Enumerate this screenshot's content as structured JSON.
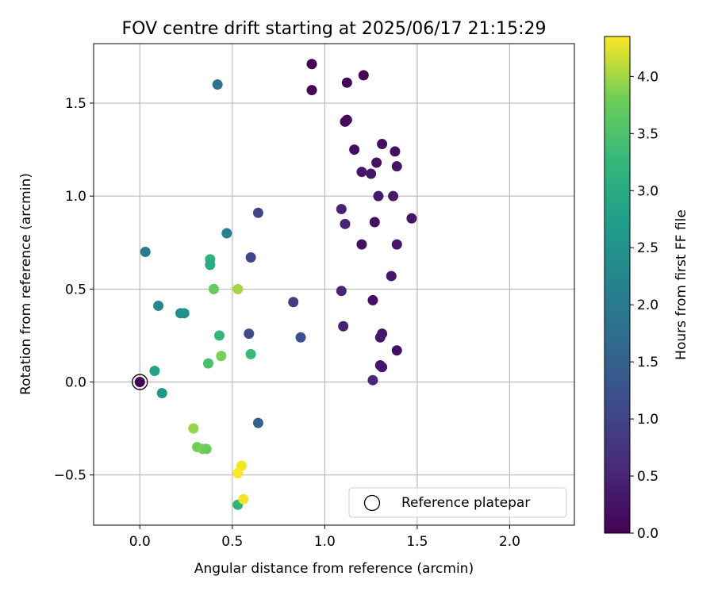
{
  "chart_data": {
    "type": "scatter",
    "title": "FOV centre drift starting at 2025/06/17 21:15:29",
    "xlabel": "Angular distance from reference (arcmin)",
    "ylabel": "Rotation from reference (arcmin)",
    "xlim": [
      -0.25,
      2.35
    ],
    "ylim": [
      -0.77,
      1.82
    ],
    "xticks": [
      0.0,
      0.5,
      1.0,
      1.5,
      2.0
    ],
    "xtick_labels": [
      "0.0",
      "0.5",
      "1.0",
      "1.5",
      "2.0"
    ],
    "yticks": [
      -0.5,
      0.0,
      0.5,
      1.0,
      1.5
    ],
    "ytick_labels": [
      "−0.5",
      "0.0",
      "0.5",
      "1.0",
      "1.5"
    ],
    "grid": true,
    "colormap": "viridis",
    "colorbar": {
      "label": "Hours from first FF file",
      "range": [
        0.0,
        4.35
      ],
      "ticks": [
        0.0,
        0.5,
        1.0,
        1.5,
        2.0,
        2.5,
        3.0,
        3.5,
        4.0
      ],
      "tick_labels": [
        "0.0",
        "0.5",
        "1.0",
        "1.5",
        "2.0",
        "2.5",
        "3.0",
        "3.5",
        "4.0"
      ]
    },
    "legend": {
      "location": "lower right",
      "entries": [
        "Reference platepar"
      ]
    },
    "reference_point": {
      "x": 0.0,
      "y": 0.0,
      "hours": 0.0
    },
    "points": [
      {
        "x": 0.93,
        "y": 1.71,
        "hours": 0.0
      },
      {
        "x": 0.93,
        "y": 1.57,
        "hours": 0.02
      },
      {
        "x": 1.21,
        "y": 1.65,
        "hours": 0.05
      },
      {
        "x": 1.12,
        "y": 1.61,
        "hours": 0.08
      },
      {
        "x": 1.11,
        "y": 1.4,
        "hours": 0.1
      },
      {
        "x": 1.12,
        "y": 1.41,
        "hours": 0.12
      },
      {
        "x": 1.16,
        "y": 1.25,
        "hours": 0.15
      },
      {
        "x": 1.31,
        "y": 1.28,
        "hours": 0.18
      },
      {
        "x": 1.38,
        "y": 1.24,
        "hours": 0.2
      },
      {
        "x": 1.28,
        "y": 1.18,
        "hours": 0.22
      },
      {
        "x": 1.39,
        "y": 1.16,
        "hours": 0.25
      },
      {
        "x": 1.2,
        "y": 1.13,
        "hours": 0.28
      },
      {
        "x": 1.25,
        "y": 1.12,
        "hours": 0.3
      },
      {
        "x": 1.29,
        "y": 1.0,
        "hours": 0.32
      },
      {
        "x": 1.37,
        "y": 1.0,
        "hours": 0.35
      },
      {
        "x": 1.09,
        "y": 0.93,
        "hours": 0.45
      },
      {
        "x": 1.27,
        "y": 0.86,
        "hours": 0.2
      },
      {
        "x": 1.47,
        "y": 0.88,
        "hours": 0.25
      },
      {
        "x": 1.11,
        "y": 0.85,
        "hours": 0.5
      },
      {
        "x": 1.2,
        "y": 0.74,
        "hours": 0.22
      },
      {
        "x": 1.39,
        "y": 0.74,
        "hours": 0.28
      },
      {
        "x": 1.36,
        "y": 0.57,
        "hours": 0.3
      },
      {
        "x": 1.09,
        "y": 0.49,
        "hours": 0.5
      },
      {
        "x": 1.26,
        "y": 0.44,
        "hours": 0.2
      },
      {
        "x": 1.1,
        "y": 0.3,
        "hours": 0.45
      },
      {
        "x": 1.31,
        "y": 0.26,
        "hours": 0.25
      },
      {
        "x": 1.3,
        "y": 0.24,
        "hours": 0.3
      },
      {
        "x": 1.39,
        "y": 0.17,
        "hours": 0.2
      },
      {
        "x": 1.3,
        "y": 0.09,
        "hours": 0.25
      },
      {
        "x": 1.31,
        "y": 0.08,
        "hours": 0.3
      },
      {
        "x": 1.26,
        "y": 0.01,
        "hours": 0.55
      },
      {
        "x": 0.64,
        "y": 0.91,
        "hours": 1.0
      },
      {
        "x": 0.6,
        "y": 0.67,
        "hours": 1.05
      },
      {
        "x": 0.83,
        "y": 0.43,
        "hours": 0.9
      },
      {
        "x": 0.59,
        "y": 0.26,
        "hours": 1.1
      },
      {
        "x": 0.87,
        "y": 0.24,
        "hours": 1.2
      },
      {
        "x": 0.64,
        "y": -0.22,
        "hours": 1.5
      },
      {
        "x": 0.42,
        "y": 1.6,
        "hours": 1.85
      },
      {
        "x": 0.47,
        "y": 0.8,
        "hours": 2.15
      },
      {
        "x": 0.03,
        "y": 0.7,
        "hours": 2.05
      },
      {
        "x": 0.1,
        "y": 0.41,
        "hours": 2.25
      },
      {
        "x": 0.22,
        "y": 0.37,
        "hours": 2.4
      },
      {
        "x": 0.24,
        "y": 0.37,
        "hours": 2.45
      },
      {
        "x": 0.12,
        "y": -0.06,
        "hours": 2.6
      },
      {
        "x": 0.08,
        "y": 0.06,
        "hours": 2.8
      },
      {
        "x": 0.38,
        "y": 0.66,
        "hours": 3.15
      },
      {
        "x": 0.38,
        "y": 0.63,
        "hours": 3.0
      },
      {
        "x": 0.43,
        "y": 0.25,
        "hours": 3.25
      },
      {
        "x": 0.6,
        "y": 0.15,
        "hours": 3.3
      },
      {
        "x": 0.37,
        "y": 0.1,
        "hours": 3.45
      },
      {
        "x": 0.53,
        "y": -0.66,
        "hours": 3.2
      },
      {
        "x": 0.4,
        "y": 0.5,
        "hours": 3.7
      },
      {
        "x": 0.53,
        "y": 0.5,
        "hours": 4.0
      },
      {
        "x": 0.44,
        "y": 0.14,
        "hours": 3.85
      },
      {
        "x": 0.29,
        "y": -0.25,
        "hours": 3.95
      },
      {
        "x": 0.31,
        "y": -0.35,
        "hours": 3.8
      },
      {
        "x": 0.34,
        "y": -0.36,
        "hours": 3.85
      },
      {
        "x": 0.36,
        "y": -0.36,
        "hours": 3.75
      },
      {
        "x": 0.55,
        "y": -0.45,
        "hours": 4.3
      },
      {
        "x": 0.53,
        "y": -0.49,
        "hours": 4.35
      },
      {
        "x": 0.56,
        "y": -0.63,
        "hours": 4.3
      }
    ]
  }
}
